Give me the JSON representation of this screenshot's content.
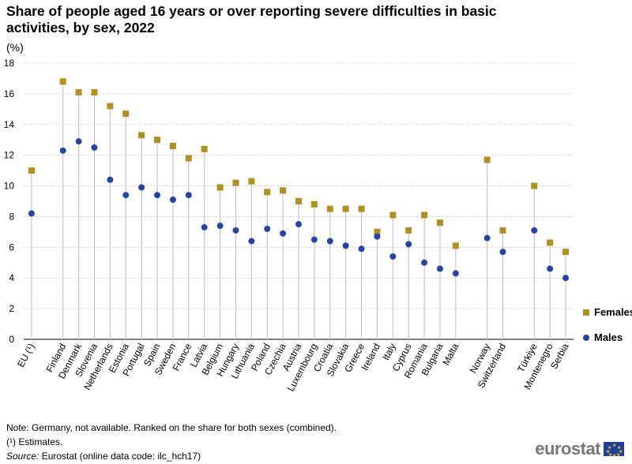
{
  "title": "Share of people aged 16 years or over reporting severe difficulties in basic activities, by sex, 2022",
  "unit": "(%)",
  "legend": {
    "females": "Females",
    "males": "Males"
  },
  "notes": {
    "note": "Note: Germany, not available. Ranked on the share for both sexes (combined).",
    "estimates": "(¹) Estimates.",
    "source_label": "Source:",
    "source_text": " Eurostat (online data code: ilc_hch17)"
  },
  "logo": {
    "text": "eurostat"
  },
  "colors": {
    "females": "#b09120",
    "males": "#2644a7",
    "grid": "#c8c8c8",
    "stem": "#bdbdbd"
  },
  "chart_data": {
    "type": "scatter",
    "title": "Share of people aged 16 years or over reporting severe difficulties in basic activities, by sex, 2022",
    "ylabel": "(%)",
    "ylim": [
      0,
      18
    ],
    "yticks": [
      0,
      2,
      4,
      6,
      8,
      10,
      12,
      14,
      16,
      18
    ],
    "categories": [
      "EU (¹)",
      "",
      "Finland",
      "Denmark",
      "Slovenia",
      "Netherlands",
      "Estonia",
      "Portugal",
      "Spain",
      "Sweden",
      "France",
      "Latvia",
      "Belgium",
      "Hungary",
      "Lithuania",
      "Poland",
      "Czechia",
      "Austria",
      "Luxembourg",
      "Croatia",
      "Slovakia",
      "Greece",
      "Ireland",
      "Italy",
      "Cyprus",
      "Romania",
      "Bulgaria",
      "Malta",
      "",
      "Norway",
      "Switzerland",
      "",
      "Türkiye",
      "Montenegro",
      "Serbia"
    ],
    "series": [
      {
        "name": "Females",
        "values": [
          11.0,
          null,
          16.8,
          16.1,
          16.1,
          15.2,
          14.7,
          13.3,
          13.0,
          12.6,
          11.8,
          12.4,
          9.9,
          10.2,
          10.3,
          9.6,
          9.7,
          9.0,
          8.8,
          8.5,
          8.5,
          8.5,
          7.0,
          8.1,
          7.1,
          8.1,
          7.6,
          6.1,
          null,
          11.7,
          7.1,
          null,
          10.0,
          6.3,
          5.7
        ]
      },
      {
        "name": "Males",
        "values": [
          8.2,
          null,
          12.3,
          12.9,
          12.5,
          10.4,
          9.4,
          9.9,
          9.4,
          9.1,
          9.4,
          7.3,
          7.4,
          7.1,
          6.4,
          7.2,
          6.9,
          7.5,
          6.5,
          6.4,
          6.1,
          5.9,
          6.7,
          5.4,
          6.2,
          5.0,
          4.6,
          4.3,
          null,
          6.6,
          5.7,
          null,
          7.1,
          4.6,
          4.0
        ]
      }
    ],
    "grid": true,
    "legend_position": "right"
  }
}
